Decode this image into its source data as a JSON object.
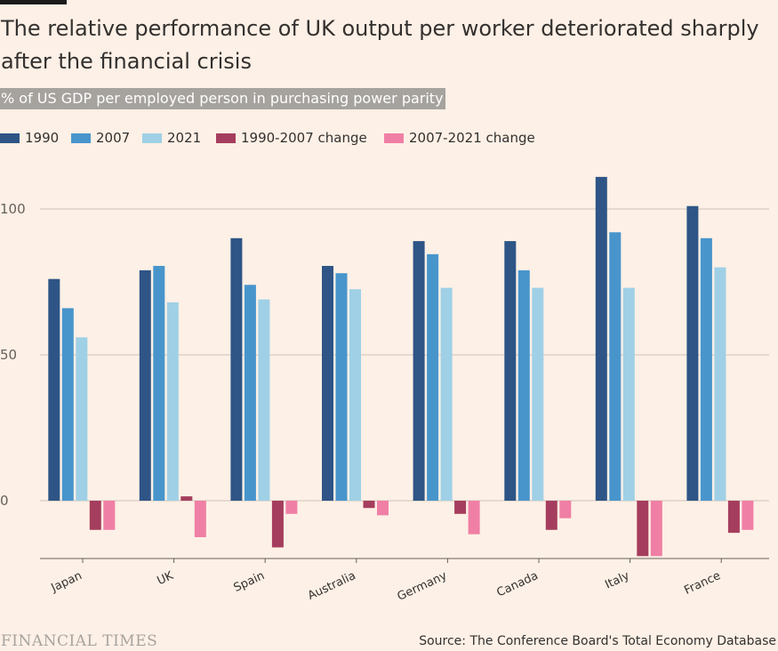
{
  "header": {
    "title": "The relative performance of UK output per worker deteriorated sharply after the financial crisis",
    "subtitle": "% of US GDP per employed person in purchasing power parity"
  },
  "footer": {
    "brand": "FINANCIAL TIMES",
    "source": "Source: The Conference Board's Total Economy Database"
  },
  "colors": {
    "background": "#fdf0e6",
    "gridline": "#cfc4bb",
    "s1990": "#2e5586",
    "s2007": "#4895cc",
    "s2021": "#9fd0e6",
    "change_1990_2007": "#a53e5e",
    "change_2007_2021": "#f07fa5"
  },
  "chart_data": {
    "type": "bar",
    "title": "The relative performance of UK output per worker deteriorated sharply after the financial crisis",
    "subtitle": "% of US GDP per employed person in purchasing power parity",
    "xlabel": "",
    "ylabel": "",
    "ylim": [
      -20,
      110
    ],
    "yticks": [
      0,
      50,
      100
    ],
    "grid": true,
    "legend_position": "top-left",
    "categories": [
      "Japan",
      "UK",
      "Spain",
      "Australia",
      "Germany",
      "Canada",
      "Italy",
      "France"
    ],
    "series": [
      {
        "name": "1990",
        "values": [
          76,
          79,
          90,
          80.5,
          89,
          89,
          111,
          101
        ]
      },
      {
        "name": "2007",
        "values": [
          66,
          80.5,
          74,
          78,
          84.5,
          79,
          92,
          90
        ]
      },
      {
        "name": "2021",
        "values": [
          56,
          68,
          69,
          72.5,
          73,
          73,
          73,
          80
        ]
      },
      {
        "name": "1990-2007 change",
        "values": [
          -10,
          1.5,
          -16,
          -2.5,
          -4.5,
          -10,
          -19,
          -11
        ]
      },
      {
        "name": "2007-2021 change",
        "values": [
          -10,
          -12.5,
          -4.5,
          -5,
          -11.5,
          -6,
          -19,
          -10
        ]
      }
    ]
  }
}
